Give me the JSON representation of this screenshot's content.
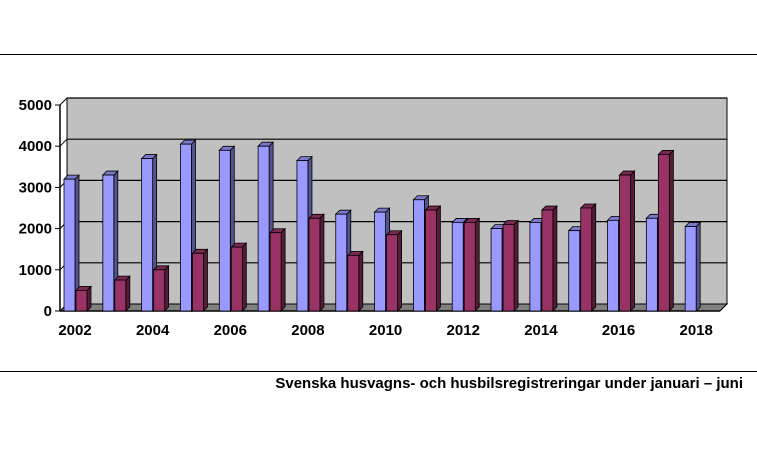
{
  "caption": "Svenska husvagns- och husbilsregistreringar under januari – juni",
  "chart_data": {
    "type": "bar",
    "title": "",
    "xlabel": "",
    "ylabel": "",
    "ylim": [
      0,
      5000
    ],
    "yticks": [
      "0",
      "1000",
      "2000",
      "3000",
      "4000",
      "5000"
    ],
    "grid": true,
    "legend": "none",
    "categories": [
      "2002",
      "2003",
      "2004",
      "2005",
      "2006",
      "2007",
      "2008",
      "2009",
      "2010",
      "2011",
      "2012",
      "2013",
      "2014",
      "2015",
      "2016",
      "2017",
      "2018"
    ],
    "xtick_labels": [
      "2002",
      "2004",
      "2006",
      "2008",
      "2010",
      "2012",
      "2014",
      "2016",
      "2018"
    ],
    "series": [
      {
        "color": "#9999ff",
        "values": [
          3200,
          3300,
          3700,
          4050,
          3900,
          4000,
          3650,
          2350,
          2400,
          2700,
          2150,
          2000,
          2150,
          1950,
          2200,
          2250,
          2050
        ]
      },
      {
        "color": "#993366",
        "values": [
          500,
          750,
          1000,
          1400,
          1550,
          1900,
          2250,
          1350,
          1850,
          2450,
          2150,
          2100,
          2450,
          2500,
          3300,
          3800,
          null
        ]
      }
    ],
    "plot_background": "#c0c0c0"
  }
}
